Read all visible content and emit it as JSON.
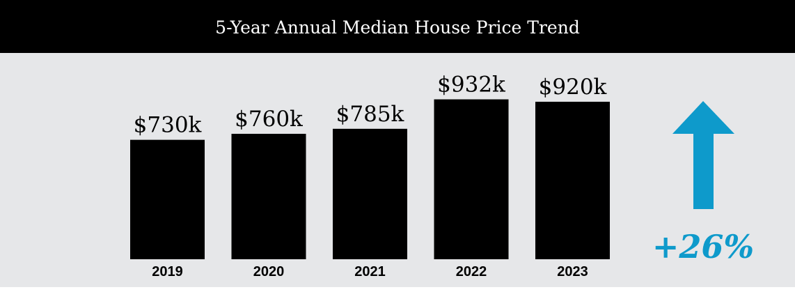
{
  "chart_data": {
    "type": "bar",
    "title": "5-Year Annual Median House Price Trend",
    "categories": [
      "2019",
      "2020",
      "2021",
      "2022",
      "2023"
    ],
    "values": [
      730,
      760,
      785,
      932,
      920
    ],
    "value_labels": [
      "$730k",
      "$760k",
      "$785k",
      "$932k",
      "$920k"
    ],
    "color": "#000000",
    "ylim": [
      134,
      1000
    ],
    "annotation": "+26%"
  }
}
